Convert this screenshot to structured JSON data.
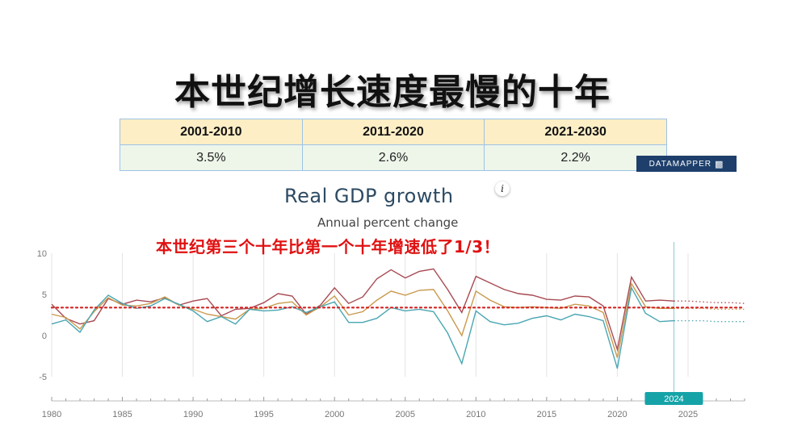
{
  "slide": {
    "title": "本世纪增长速度最慢的十年",
    "annotation": "本世纪第三个十年比第一个十年增速低了1/3！"
  },
  "table": {
    "headers": [
      "2001-2010",
      "2011-2020",
      "2021-2030"
    ],
    "values": [
      "3.5%",
      "2.6%",
      "2.2%"
    ]
  },
  "source_badge": {
    "label": "DATAMAPPER",
    "icon": "bar-chart-icon"
  },
  "chart_data": {
    "type": "line",
    "title": "Real GDP growth",
    "subtitle": "Annual percent change",
    "xlabel": "",
    "ylabel": "",
    "xlim": [
      1980,
      2029
    ],
    "ylim": [
      -5,
      10
    ],
    "x_ticks": [
      1980,
      1985,
      1990,
      1995,
      2000,
      2005,
      2010,
      2015,
      2020,
      2025
    ],
    "y_ticks": [
      10,
      5,
      0,
      -5
    ],
    "marker_label": "2024",
    "marker_year": 2024,
    "grid": true,
    "projection_start": 2024,
    "reference_line": {
      "value": 3.4,
      "style": "dotted",
      "color": "#d42020"
    },
    "series": [
      {
        "color": "#a84a52",
        "values": [
          [
            1980,
            3.8
          ],
          [
            1981,
            2.1
          ],
          [
            1982,
            1.4
          ],
          [
            1983,
            1.8
          ],
          [
            1984,
            4.5
          ],
          [
            1985,
            3.8
          ],
          [
            1986,
            4.3
          ],
          [
            1987,
            4.1
          ],
          [
            1988,
            4.6
          ],
          [
            1989,
            3.7
          ],
          [
            1990,
            4.2
          ],
          [
            1991,
            4.5
          ],
          [
            1992,
            2.4
          ],
          [
            1993,
            3.2
          ],
          [
            1994,
            3.3
          ],
          [
            1995,
            4.0
          ],
          [
            1996,
            5.1
          ],
          [
            1997,
            4.8
          ],
          [
            1998,
            2.6
          ],
          [
            1999,
            3.7
          ],
          [
            2000,
            5.8
          ],
          [
            2001,
            3.9
          ],
          [
            2002,
            4.7
          ],
          [
            2003,
            6.9
          ],
          [
            2004,
            8.0
          ],
          [
            2005,
            7.0
          ],
          [
            2006,
            7.8
          ],
          [
            2007,
            8.1
          ],
          [
            2008,
            5.6
          ],
          [
            2009,
            2.8
          ],
          [
            2010,
            7.2
          ],
          [
            2011,
            6.4
          ],
          [
            2012,
            5.6
          ],
          [
            2013,
            5.1
          ],
          [
            2014,
            4.9
          ],
          [
            2015,
            4.4
          ],
          [
            2016,
            4.3
          ],
          [
            2017,
            4.8
          ],
          [
            2018,
            4.7
          ],
          [
            2019,
            3.6
          ],
          [
            2020,
            -1.7
          ],
          [
            2021,
            7.1
          ],
          [
            2022,
            4.2
          ],
          [
            2023,
            4.3
          ],
          [
            2024,
            4.2
          ],
          [
            2025,
            4.2
          ],
          [
            2026,
            4.1
          ],
          [
            2027,
            4.0
          ],
          [
            2028,
            4.0
          ],
          [
            2029,
            3.9
          ]
        ]
      },
      {
        "color": "#c99a4e",
        "values": [
          [
            1980,
            2.6
          ],
          [
            1981,
            2.2
          ],
          [
            1982,
            0.8
          ],
          [
            1983,
            2.9
          ],
          [
            1984,
            4.6
          ],
          [
            1985,
            3.7
          ],
          [
            1986,
            3.6
          ],
          [
            1987,
            3.9
          ],
          [
            1988,
            4.7
          ],
          [
            1989,
            3.7
          ],
          [
            1990,
            3.2
          ],
          [
            1991,
            2.6
          ],
          [
            1992,
            2.3
          ],
          [
            1993,
            2.0
          ],
          [
            1994,
            3.2
          ],
          [
            1995,
            3.3
          ],
          [
            1996,
            3.9
          ],
          [
            1997,
            4.1
          ],
          [
            1998,
            2.5
          ],
          [
            1999,
            3.5
          ],
          [
            2000,
            4.8
          ],
          [
            2001,
            2.5
          ],
          [
            2002,
            2.9
          ],
          [
            2003,
            4.3
          ],
          [
            2004,
            5.4
          ],
          [
            2005,
            4.9
          ],
          [
            2006,
            5.5
          ],
          [
            2007,
            5.6
          ],
          [
            2008,
            3.0
          ],
          [
            2009,
            0.0
          ],
          [
            2010,
            5.4
          ],
          [
            2011,
            4.3
          ],
          [
            2012,
            3.5
          ],
          [
            2013,
            3.4
          ],
          [
            2014,
            3.5
          ],
          [
            2015,
            3.4
          ],
          [
            2016,
            3.3
          ],
          [
            2017,
            3.8
          ],
          [
            2018,
            3.6
          ],
          [
            2019,
            2.8
          ],
          [
            2020,
            -2.7
          ],
          [
            2021,
            6.3
          ],
          [
            2022,
            3.5
          ],
          [
            2023,
            3.3
          ],
          [
            2024,
            3.3
          ],
          [
            2025,
            3.3
          ],
          [
            2026,
            3.3
          ],
          [
            2027,
            3.2
          ],
          [
            2028,
            3.2
          ],
          [
            2029,
            3.2
          ]
        ]
      },
      {
        "color": "#4aa6b2",
        "values": [
          [
            1980,
            1.4
          ],
          [
            1981,
            1.9
          ],
          [
            1982,
            0.4
          ],
          [
            1983,
            3.1
          ],
          [
            1984,
            4.9
          ],
          [
            1985,
            3.9
          ],
          [
            1986,
            3.3
          ],
          [
            1987,
            3.6
          ],
          [
            1988,
            4.5
          ],
          [
            1989,
            3.8
          ],
          [
            1990,
            3.0
          ],
          [
            1991,
            1.7
          ],
          [
            1992,
            2.3
          ],
          [
            1993,
            1.4
          ],
          [
            1994,
            3.2
          ],
          [
            1995,
            3.0
          ],
          [
            1996,
            3.1
          ],
          [
            1997,
            3.5
          ],
          [
            1998,
            2.8
          ],
          [
            1999,
            3.5
          ],
          [
            2000,
            4.1
          ],
          [
            2001,
            1.6
          ],
          [
            2002,
            1.6
          ],
          [
            2003,
            2.1
          ],
          [
            2004,
            3.4
          ],
          [
            2005,
            3.0
          ],
          [
            2006,
            3.2
          ],
          [
            2007,
            2.9
          ],
          [
            2008,
            0.3
          ],
          [
            2009,
            -3.4
          ],
          [
            2010,
            3.0
          ],
          [
            2011,
            1.7
          ],
          [
            2012,
            1.3
          ],
          [
            2013,
            1.5
          ],
          [
            2014,
            2.1
          ],
          [
            2015,
            2.4
          ],
          [
            2016,
            1.9
          ],
          [
            2017,
            2.6
          ],
          [
            2018,
            2.3
          ],
          [
            2019,
            1.8
          ],
          [
            2020,
            -4.0
          ],
          [
            2021,
            5.8
          ],
          [
            2022,
            2.7
          ],
          [
            2023,
            1.7
          ],
          [
            2024,
            1.8
          ],
          [
            2025,
            1.8
          ],
          [
            2026,
            1.8
          ],
          [
            2027,
            1.7
          ],
          [
            2028,
            1.7
          ],
          [
            2029,
            1.7
          ]
        ]
      }
    ]
  }
}
